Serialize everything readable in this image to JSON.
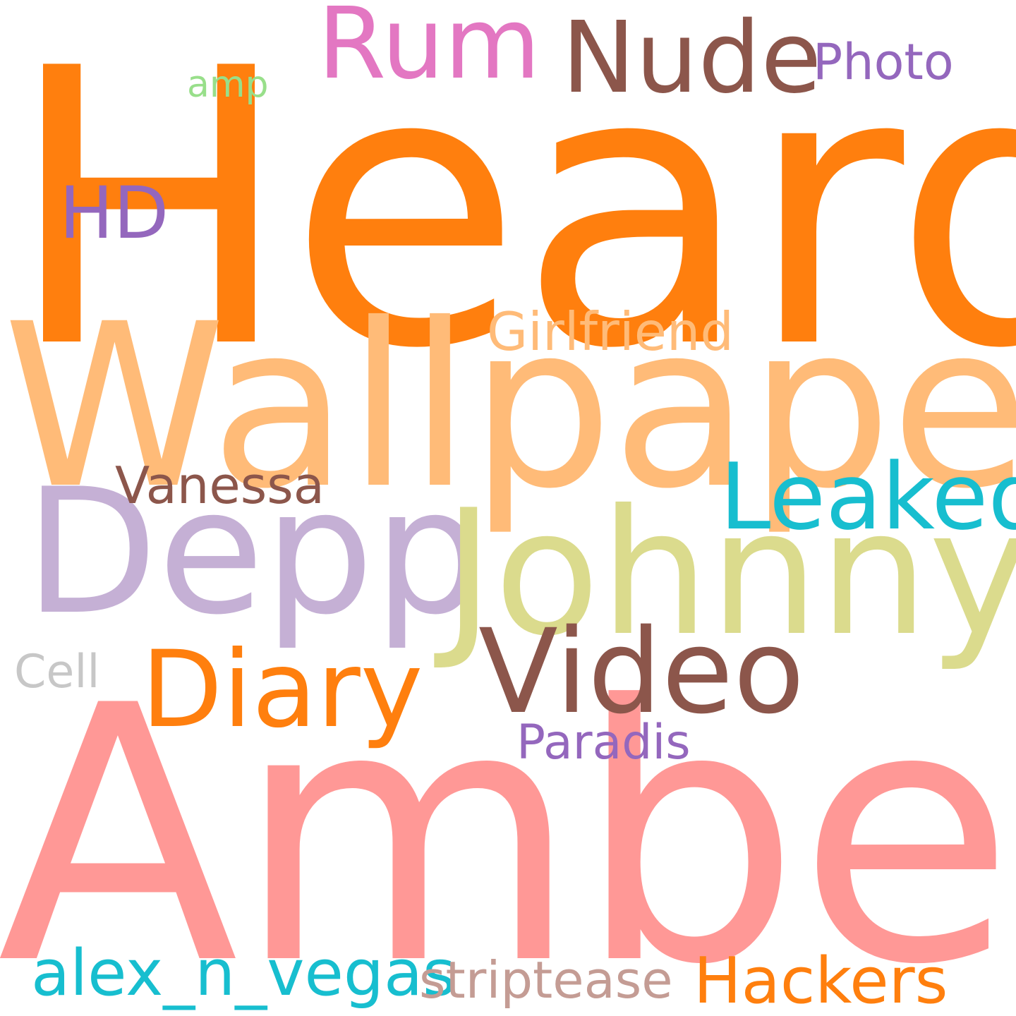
{
  "words": [
    {
      "id": "heard",
      "text": "Heard",
      "color": "#ff7f0e"
    },
    {
      "id": "wallpaper",
      "text": "Wallpaper",
      "color": "#ffbb78"
    },
    {
      "id": "amber",
      "text": "Amber",
      "color": "#ff9896"
    },
    {
      "id": "depp",
      "text": "Depp",
      "color": "#c5b0d5"
    },
    {
      "id": "johnny",
      "text": "Johnny",
      "color": "#dbdb8d"
    },
    {
      "id": "rum",
      "text": "Rum",
      "color": "#e377c2"
    },
    {
      "id": "nude",
      "text": "Nude",
      "color": "#8c564b"
    },
    {
      "id": "photo",
      "text": "Photo",
      "color": "#9467bd"
    },
    {
      "id": "amp",
      "text": "amp",
      "color": "#98df8a"
    },
    {
      "id": "hd",
      "text": "HD",
      "color": "#9467bd"
    },
    {
      "id": "girlfriend",
      "text": "Girlfriend",
      "color": "#ffbb78"
    },
    {
      "id": "leaked",
      "text": "Leaked",
      "color": "#17becf"
    },
    {
      "id": "vanessa",
      "text": "Vanessa",
      "color": "#8c564b"
    },
    {
      "id": "video",
      "text": "Video",
      "color": "#8c564b"
    },
    {
      "id": "diary",
      "text": "Diary",
      "color": "#ff7f0e"
    },
    {
      "id": "cell",
      "text": "Cell",
      "color": "#c7c7c7"
    },
    {
      "id": "paradis",
      "text": "Paradis",
      "color": "#9467bd"
    },
    {
      "id": "alex",
      "text": "alex_n_vegas",
      "color": "#17becf"
    },
    {
      "id": "striptease",
      "text": "striptease",
      "color": "#c49c94"
    },
    {
      "id": "hackers",
      "text": "Hackers",
      "color": "#ff7f0e"
    }
  ]
}
